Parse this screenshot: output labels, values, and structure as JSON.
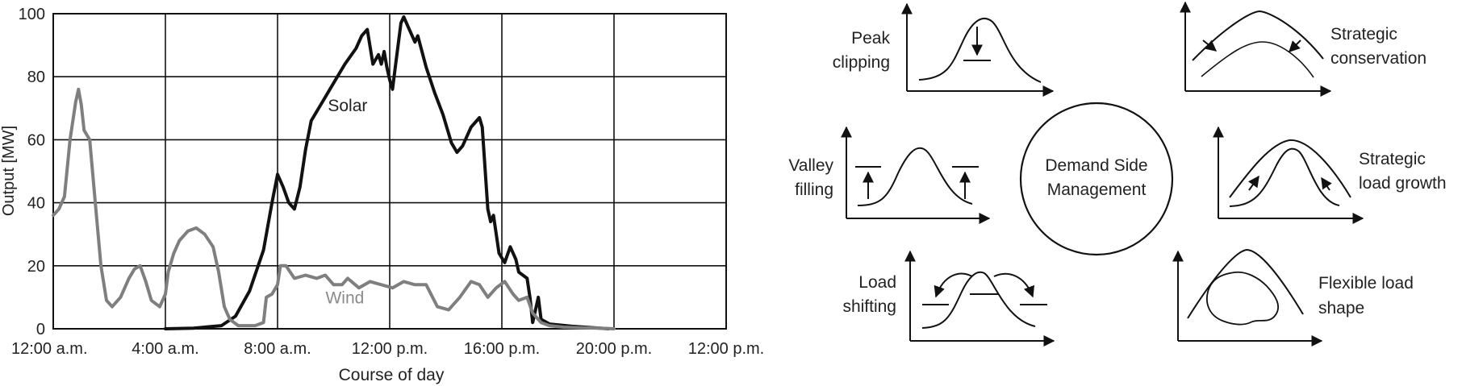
{
  "chart_data": {
    "type": "line",
    "xlabel": "Course of day",
    "ylabel": "Output [MW]",
    "ylim": [
      0,
      100
    ],
    "xlim": [
      0,
      24
    ],
    "grid": true,
    "xticks": [
      {
        "value": 0,
        "label": "12:00 a.m."
      },
      {
        "value": 4,
        "label": "4:00 a.m."
      },
      {
        "value": 8,
        "label": "8:00 a.m."
      },
      {
        "value": 12,
        "label": "12:00 p.m."
      },
      {
        "value": 16,
        "label": "16:00 p.m."
      },
      {
        "value": 20,
        "label": "20:00 p.m."
      },
      {
        "value": 24,
        "label": "12:00 p.m."
      }
    ],
    "yticks": [
      0,
      20,
      40,
      60,
      80,
      100
    ],
    "series": [
      {
        "name": "Solar",
        "color": "#111111",
        "points": [
          [
            4.0,
            0
          ],
          [
            5.0,
            0.2
          ],
          [
            6.0,
            1
          ],
          [
            6.5,
            4
          ],
          [
            7.0,
            12
          ],
          [
            7.5,
            25
          ],
          [
            7.8,
            40
          ],
          [
            8.0,
            49
          ],
          [
            8.2,
            45
          ],
          [
            8.4,
            40
          ],
          [
            8.6,
            38
          ],
          [
            8.8,
            45
          ],
          [
            9.0,
            57
          ],
          [
            9.2,
            66
          ],
          [
            9.6,
            72
          ],
          [
            10.0,
            78
          ],
          [
            10.4,
            84
          ],
          [
            10.8,
            89
          ],
          [
            11.0,
            93
          ],
          [
            11.2,
            95
          ],
          [
            11.4,
            84
          ],
          [
            11.6,
            87
          ],
          [
            11.7,
            84
          ],
          [
            11.8,
            88
          ],
          [
            11.9,
            83
          ],
          [
            12.0,
            79
          ],
          [
            12.1,
            76
          ],
          [
            12.2,
            83
          ],
          [
            12.4,
            97
          ],
          [
            12.5,
            99
          ],
          [
            12.7,
            95
          ],
          [
            12.9,
            91
          ],
          [
            13.0,
            93
          ],
          [
            13.3,
            83
          ],
          [
            13.6,
            75
          ],
          [
            13.9,
            68
          ],
          [
            14.2,
            59
          ],
          [
            14.4,
            56
          ],
          [
            14.6,
            58
          ],
          [
            14.9,
            64
          ],
          [
            15.2,
            67
          ],
          [
            15.3,
            64
          ],
          [
            15.5,
            38
          ],
          [
            15.6,
            34
          ],
          [
            15.7,
            36
          ],
          [
            15.9,
            24
          ],
          [
            16.1,
            21
          ],
          [
            16.3,
            26
          ],
          [
            16.5,
            22
          ],
          [
            16.6,
            18
          ],
          [
            16.9,
            16
          ],
          [
            17.0,
            10
          ],
          [
            17.1,
            2
          ],
          [
            17.3,
            10
          ],
          [
            17.4,
            3
          ],
          [
            17.7,
            1.5
          ],
          [
            18.5,
            0.8
          ],
          [
            19.5,
            0.2
          ],
          [
            19.8,
            0
          ]
        ]
      },
      {
        "name": "Wind",
        "color": "#7f7f7f",
        "points": [
          [
            0.0,
            36
          ],
          [
            0.2,
            38
          ],
          [
            0.4,
            42
          ],
          [
            0.6,
            60
          ],
          [
            0.8,
            72
          ],
          [
            0.9,
            76
          ],
          [
            1.0,
            71
          ],
          [
            1.1,
            63
          ],
          [
            1.3,
            60
          ],
          [
            1.5,
            40
          ],
          [
            1.7,
            20
          ],
          [
            1.9,
            9
          ],
          [
            2.1,
            7
          ],
          [
            2.4,
            10
          ],
          [
            2.7,
            16
          ],
          [
            2.9,
            19
          ],
          [
            3.1,
            20
          ],
          [
            3.3,
            15
          ],
          [
            3.5,
            9
          ],
          [
            3.8,
            7
          ],
          [
            4.0,
            11
          ],
          [
            4.1,
            18
          ],
          [
            4.3,
            24
          ],
          [
            4.5,
            28
          ],
          [
            4.8,
            31
          ],
          [
            5.1,
            32
          ],
          [
            5.4,
            30
          ],
          [
            5.7,
            26
          ],
          [
            5.9,
            18
          ],
          [
            6.1,
            7
          ],
          [
            6.3,
            3
          ],
          [
            6.6,
            1
          ],
          [
            7.0,
            1
          ],
          [
            7.2,
            1
          ],
          [
            7.5,
            2
          ],
          [
            7.6,
            10
          ],
          [
            7.8,
            11
          ],
          [
            8.0,
            14
          ],
          [
            8.1,
            20
          ],
          [
            8.3,
            20
          ],
          [
            8.6,
            16
          ],
          [
            9.0,
            17
          ],
          [
            9.4,
            16
          ],
          [
            9.7,
            17
          ],
          [
            10.0,
            14
          ],
          [
            10.3,
            14
          ],
          [
            10.5,
            16
          ],
          [
            10.9,
            13
          ],
          [
            11.3,
            15
          ],
          [
            11.7,
            14
          ],
          [
            12.1,
            13
          ],
          [
            12.5,
            15
          ],
          [
            12.9,
            14
          ],
          [
            13.3,
            14
          ],
          [
            13.7,
            7
          ],
          [
            14.1,
            6
          ],
          [
            14.5,
            10
          ],
          [
            14.9,
            15
          ],
          [
            15.2,
            14
          ],
          [
            15.5,
            10
          ],
          [
            15.8,
            13
          ],
          [
            16.1,
            15
          ],
          [
            16.4,
            11
          ],
          [
            16.6,
            9
          ],
          [
            16.9,
            10
          ],
          [
            17.1,
            5
          ],
          [
            17.4,
            2
          ],
          [
            17.7,
            1
          ],
          [
            18.2,
            0.5
          ],
          [
            18.8,
            0.3
          ],
          [
            19.5,
            0.2
          ],
          [
            20.0,
            0
          ]
        ]
      }
    ],
    "annotations": [
      {
        "text": "Solar",
        "x": 10.5,
        "y": 69
      },
      {
        "text": "Wind",
        "x": 10.4,
        "y": 8
      }
    ]
  },
  "diagram": {
    "center": {
      "line1": "Demand Side",
      "line2": "Management"
    },
    "strategies": [
      {
        "id": "peak-clipping",
        "line1": "Peak",
        "line2": "clipping"
      },
      {
        "id": "strategic-conservation",
        "line1": "Strategic",
        "line2": "conservation"
      },
      {
        "id": "valley-filling",
        "line1": "Valley",
        "line2": "filling"
      },
      {
        "id": "strategic-load-growth",
        "line1": "Strategic",
        "line2": "load growth"
      },
      {
        "id": "load-shifting",
        "line1": "Load",
        "line2": "shifting"
      },
      {
        "id": "flexible-load-shape",
        "line1": "Flexible load",
        "line2": "shape"
      }
    ]
  }
}
